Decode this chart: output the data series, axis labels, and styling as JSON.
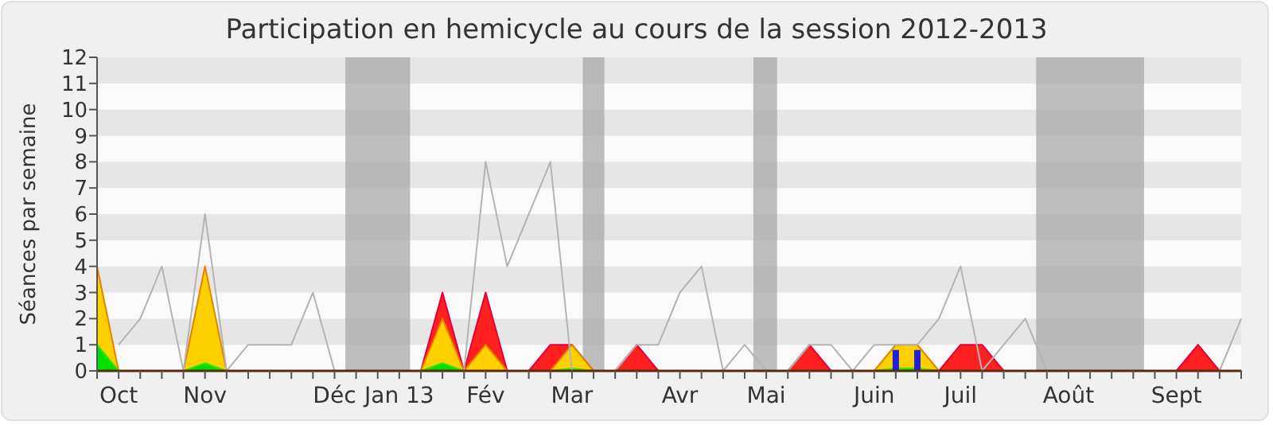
{
  "chart_data": {
    "type": "area",
    "title": "Participation en hemicycle au cours de la session 2012-2013",
    "ylabel": "Séances par semaine",
    "ylim": [
      0,
      12
    ],
    "yticks": [
      0,
      1,
      2,
      3,
      4,
      5,
      6,
      7,
      8,
      9,
      10,
      11,
      12
    ],
    "categories": [
      null,
      "Oct",
      null,
      null,
      null,
      "Nov",
      null,
      null,
      null,
      null,
      null,
      "Déc",
      null,
      null,
      "Jan 13",
      null,
      null,
      null,
      "Fév",
      null,
      null,
      null,
      "Mar",
      null,
      null,
      null,
      null,
      "Avr",
      null,
      null,
      null,
      "Mai",
      null,
      null,
      null,
      null,
      "Juin",
      null,
      null,
      null,
      "Juil",
      null,
      null,
      null,
      null,
      "Août",
      null,
      null,
      null,
      null,
      "Sept",
      null,
      null,
      null
    ],
    "series": [
      {
        "color": "#ff2020",
        "values": [
          0,
          0,
          0,
          0,
          0,
          0,
          0,
          0,
          0,
          0,
          0,
          0,
          0,
          0,
          0,
          0,
          3,
          0,
          3,
          0,
          0,
          1,
          1,
          0,
          0,
          1,
          0,
          0,
          0,
          0,
          0,
          0,
          0,
          1,
          0,
          0,
          0,
          0,
          0,
          0,
          1,
          1,
          0,
          0,
          0,
          0,
          0,
          0,
          0,
          0,
          0,
          1,
          0,
          0
        ]
      },
      {
        "color": "#ffd000",
        "values": [
          4,
          0,
          0,
          0,
          0,
          4,
          0,
          0,
          0,
          0,
          0,
          0,
          0,
          0,
          0,
          0,
          2,
          0,
          1,
          0,
          0,
          0,
          1,
          0,
          0,
          0,
          0,
          0,
          0,
          0,
          0,
          0,
          0,
          0,
          0,
          0,
          0,
          1,
          1,
          0,
          0,
          0,
          0,
          0,
          0,
          0,
          0,
          0,
          0,
          0,
          0,
          0,
          0,
          0
        ]
      },
      {
        "color": "#00e000",
        "values": [
          1,
          0,
          0,
          0,
          0,
          0.3,
          0,
          0,
          0,
          0,
          0,
          0,
          0,
          0,
          0,
          0,
          0.3,
          0,
          0,
          0,
          0,
          0,
          0.1,
          0,
          0,
          0,
          0,
          0,
          0,
          0,
          0,
          0,
          0,
          0,
          0,
          0,
          0,
          0.1,
          0.1,
          0,
          0,
          0,
          0,
          0,
          0,
          0,
          0,
          0,
          0,
          0,
          0,
          0,
          0,
          0
        ]
      },
      {
        "type": "bar",
        "color": "#2020e0",
        "values": [
          0,
          0,
          0,
          0,
          0,
          0,
          0,
          0,
          0,
          0,
          0,
          0,
          0,
          0,
          0,
          0,
          0,
          0,
          0,
          0,
          0,
          0,
          0,
          0,
          0,
          0,
          0,
          0,
          0,
          0,
          0,
          0,
          0,
          0,
          0,
          0,
          0,
          0.8,
          0.8,
          0,
          0,
          0,
          0,
          0,
          0,
          0,
          0,
          0,
          0,
          0,
          0,
          0,
          0,
          0
        ]
      },
      {
        "type": "line",
        "color": "#b4b4b4",
        "values": [
          null,
          1,
          2,
          4,
          0,
          6,
          0,
          1,
          1,
          1,
          3,
          0,
          null,
          null,
          null,
          null,
          null,
          0,
          8,
          4,
          6,
          8,
          0,
          null,
          0,
          1,
          1,
          3,
          4,
          0,
          1,
          0,
          0,
          1,
          1,
          0,
          1,
          1,
          1,
          2,
          4,
          0,
          1,
          2,
          0,
          0,
          0,
          0,
          0,
          0,
          0,
          0,
          0,
          2
        ]
      }
    ]
  }
}
